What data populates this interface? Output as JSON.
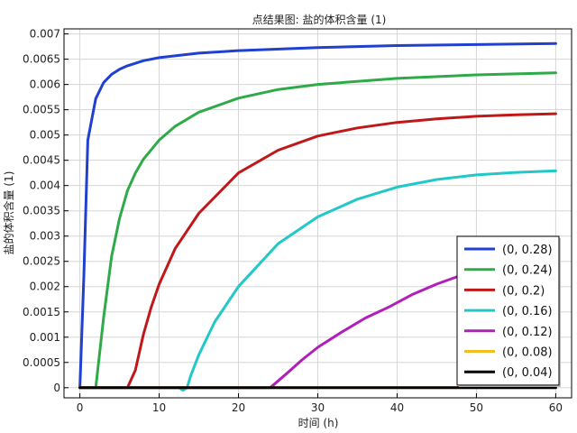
{
  "chart_data": {
    "type": "line",
    "title": "点结果图: 盐的体积含量 (1)",
    "xlabel": "时间 (h)",
    "ylabel": "盐的体积含量 (1)",
    "xlim": [
      -2,
      62
    ],
    "ylim": [
      -0.0002,
      0.0071
    ],
    "x_ticks": [
      0,
      10,
      20,
      30,
      40,
      50,
      60
    ],
    "y_ticks": [
      0,
      0.0005,
      0.001,
      0.0015,
      0.002,
      0.0025,
      0.003,
      0.0035,
      0.004,
      0.0045,
      0.005,
      0.0055,
      0.006,
      0.0065,
      0.007
    ],
    "y_tick_labels": [
      "0",
      "0.0005",
      "0.001",
      "0.0015",
      "0.002",
      "0.0025",
      "0.003",
      "0.0035",
      "0.004",
      "0.0045",
      "0.005",
      "0.0055",
      "0.006",
      "0.0065",
      "0.007"
    ],
    "grid": true,
    "legend_position": "bottom-right",
    "series": [
      {
        "name": "(0, 0.28)",
        "color": "#2040d0",
        "x": [
          0,
          0.5,
          1,
          2,
          3,
          4,
          5,
          6,
          8,
          10,
          15,
          20,
          30,
          40,
          50,
          60
        ],
        "y": [
          0,
          0.0022,
          0.0049,
          0.00572,
          0.00604,
          0.0062,
          0.0063,
          0.00637,
          0.00647,
          0.00653,
          0.00662,
          0.00667,
          0.00673,
          0.00677,
          0.00679,
          0.00681
        ]
      },
      {
        "name": "(0, 0.24)",
        "color": "#2eaa48",
        "x": [
          0,
          2,
          3,
          4,
          5,
          6,
          7,
          8,
          10,
          12,
          15,
          20,
          25,
          30,
          40,
          50,
          60
        ],
        "y": [
          0,
          0,
          0.0014,
          0.0026,
          0.00335,
          0.0039,
          0.00425,
          0.00452,
          0.0049,
          0.00517,
          0.00545,
          0.00573,
          0.0059,
          0.006,
          0.00612,
          0.00619,
          0.00623
        ]
      },
      {
        "name": "(0, 0.2)",
        "color": "#c01818",
        "x": [
          0,
          6,
          7,
          8,
          9,
          10,
          12,
          15,
          20,
          25,
          30,
          35,
          40,
          45,
          50,
          55,
          60
        ],
        "y": [
          0,
          0,
          0.00035,
          0.00105,
          0.0016,
          0.00205,
          0.00275,
          0.00345,
          0.00425,
          0.0047,
          0.00498,
          0.00514,
          0.00525,
          0.00532,
          0.00537,
          0.0054,
          0.00542
        ]
      },
      {
        "name": "(0, 0.16)",
        "color": "#22c8c8",
        "x": [
          0,
          12.5,
          13,
          13.5,
          14,
          15,
          17,
          20,
          25,
          30,
          35,
          40,
          45,
          50,
          55,
          60
        ],
        "y": [
          0,
          0,
          -5e-05,
          0,
          0.00025,
          0.00065,
          0.0013,
          0.002,
          0.00285,
          0.00338,
          0.00373,
          0.00397,
          0.00412,
          0.00421,
          0.00426,
          0.00429
        ]
      },
      {
        "name": "(0, 0.12)",
        "color": "#b020b8",
        "x": [
          0,
          24,
          26,
          28,
          30,
          33,
          36,
          39,
          42,
          45,
          48,
          52,
          56,
          60
        ],
        "y": [
          0,
          0,
          0.00027,
          0.00055,
          0.0008,
          0.0011,
          0.00138,
          0.0016,
          0.00185,
          0.00205,
          0.00222,
          0.0024,
          0.00252,
          0.0026
        ]
      },
      {
        "name": "(0, 0.08)",
        "color": "#f0c020",
        "x": [
          0,
          60
        ],
        "y": [
          0,
          0
        ]
      },
      {
        "name": "(0, 0.04)",
        "color": "#000000",
        "x": [
          0,
          60
        ],
        "y": [
          0,
          0
        ]
      }
    ]
  }
}
